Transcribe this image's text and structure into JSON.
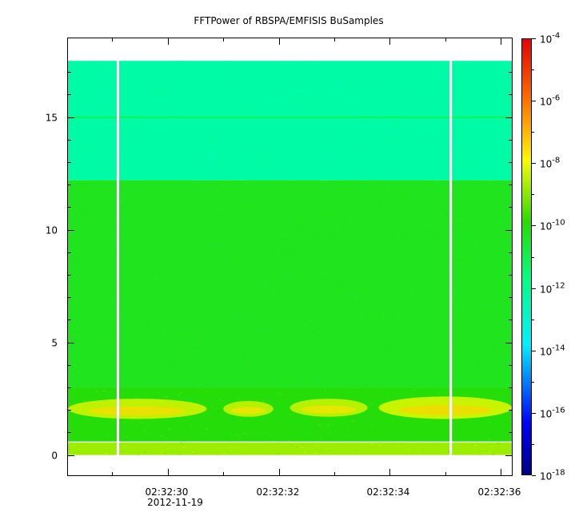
{
  "chart_data": {
    "type": "heatmap",
    "title": "FFTPower of RBSPA/EMFISIS  BuSamples",
    "xlabel": "",
    "ylabel": "",
    "x_ticks": [
      {
        "time": "02:32:30",
        "label": "02:32:30"
      },
      {
        "time": "02:32:32",
        "label": "02:32:32"
      },
      {
        "time": "02:32:34",
        "label": "02:32:34"
      },
      {
        "time": "02:32:36",
        "label": "02:32:36"
      }
    ],
    "x_minor_ticks": [
      "02:32:29",
      "02:32:31",
      "02:32:33",
      "02:32:35"
    ],
    "x_date_label": "2012-11-19",
    "xlim": [
      "02:32:28.2",
      "02:32:36.2"
    ],
    "y_ticks": [
      0,
      5,
      10,
      15
    ],
    "ylim": [
      -0.9,
      18.5
    ],
    "colorbar": {
      "scale": "log",
      "range": [
        1e-18,
        0.0001
      ],
      "tick_labels": [
        {
          "base": "10",
          "exp": "-4"
        },
        {
          "base": "10",
          "exp": "-6"
        },
        {
          "base": "10",
          "exp": "-8"
        },
        {
          "base": "10",
          "exp": "-10"
        },
        {
          "base": "10",
          "exp": "-12"
        },
        {
          "base": "10",
          "exp": "-14"
        },
        {
          "base": "10",
          "exp": "-16"
        },
        {
          "base": "10",
          "exp": "-18"
        }
      ],
      "tick_values_log10": [
        -4,
        -6,
        -8,
        -10,
        -12,
        -14,
        -16,
        -18
      ]
    },
    "data_gaps": [
      "02:32:29.1",
      "02:32:35.1"
    ],
    "data_extent": {
      "time": [
        "02:32:28.2",
        "02:32:36.2"
      ],
      "freq": [
        0,
        17.5
      ]
    },
    "bands": [
      {
        "freq": [
          12.2,
          17.5
        ],
        "log10_power": -12.3
      },
      {
        "freq": [
          3.0,
          12.2
        ],
        "log10_power": -10.3
      },
      {
        "freq": [
          0.6,
          3.0
        ],
        "log10_power": -10.0
      },
      {
        "freq": [
          0,
          0.55
        ],
        "log10_power": -8.8
      }
    ],
    "line_features": [
      {
        "freq": 15.0,
        "log10_power": -11.0
      }
    ],
    "emission_features": [
      {
        "time": [
          "02:32:28.2",
          "02:32:30.7"
        ],
        "freq": [
          1.6,
          2.5
        ],
        "log10_power": -8.3
      },
      {
        "time": [
          "02:32:31.0",
          "02:32:31.9"
        ],
        "freq": [
          1.7,
          2.4
        ],
        "log10_power": -8.4
      },
      {
        "time": [
          "02:32:32.2",
          "02:32:33.6"
        ],
        "freq": [
          1.7,
          2.5
        ],
        "log10_power": -8.4
      },
      {
        "time": [
          "02:32:33.8",
          "02:32:36.2"
        ],
        "freq": [
          1.6,
          2.6
        ],
        "log10_power": -8.2
      }
    ]
  }
}
